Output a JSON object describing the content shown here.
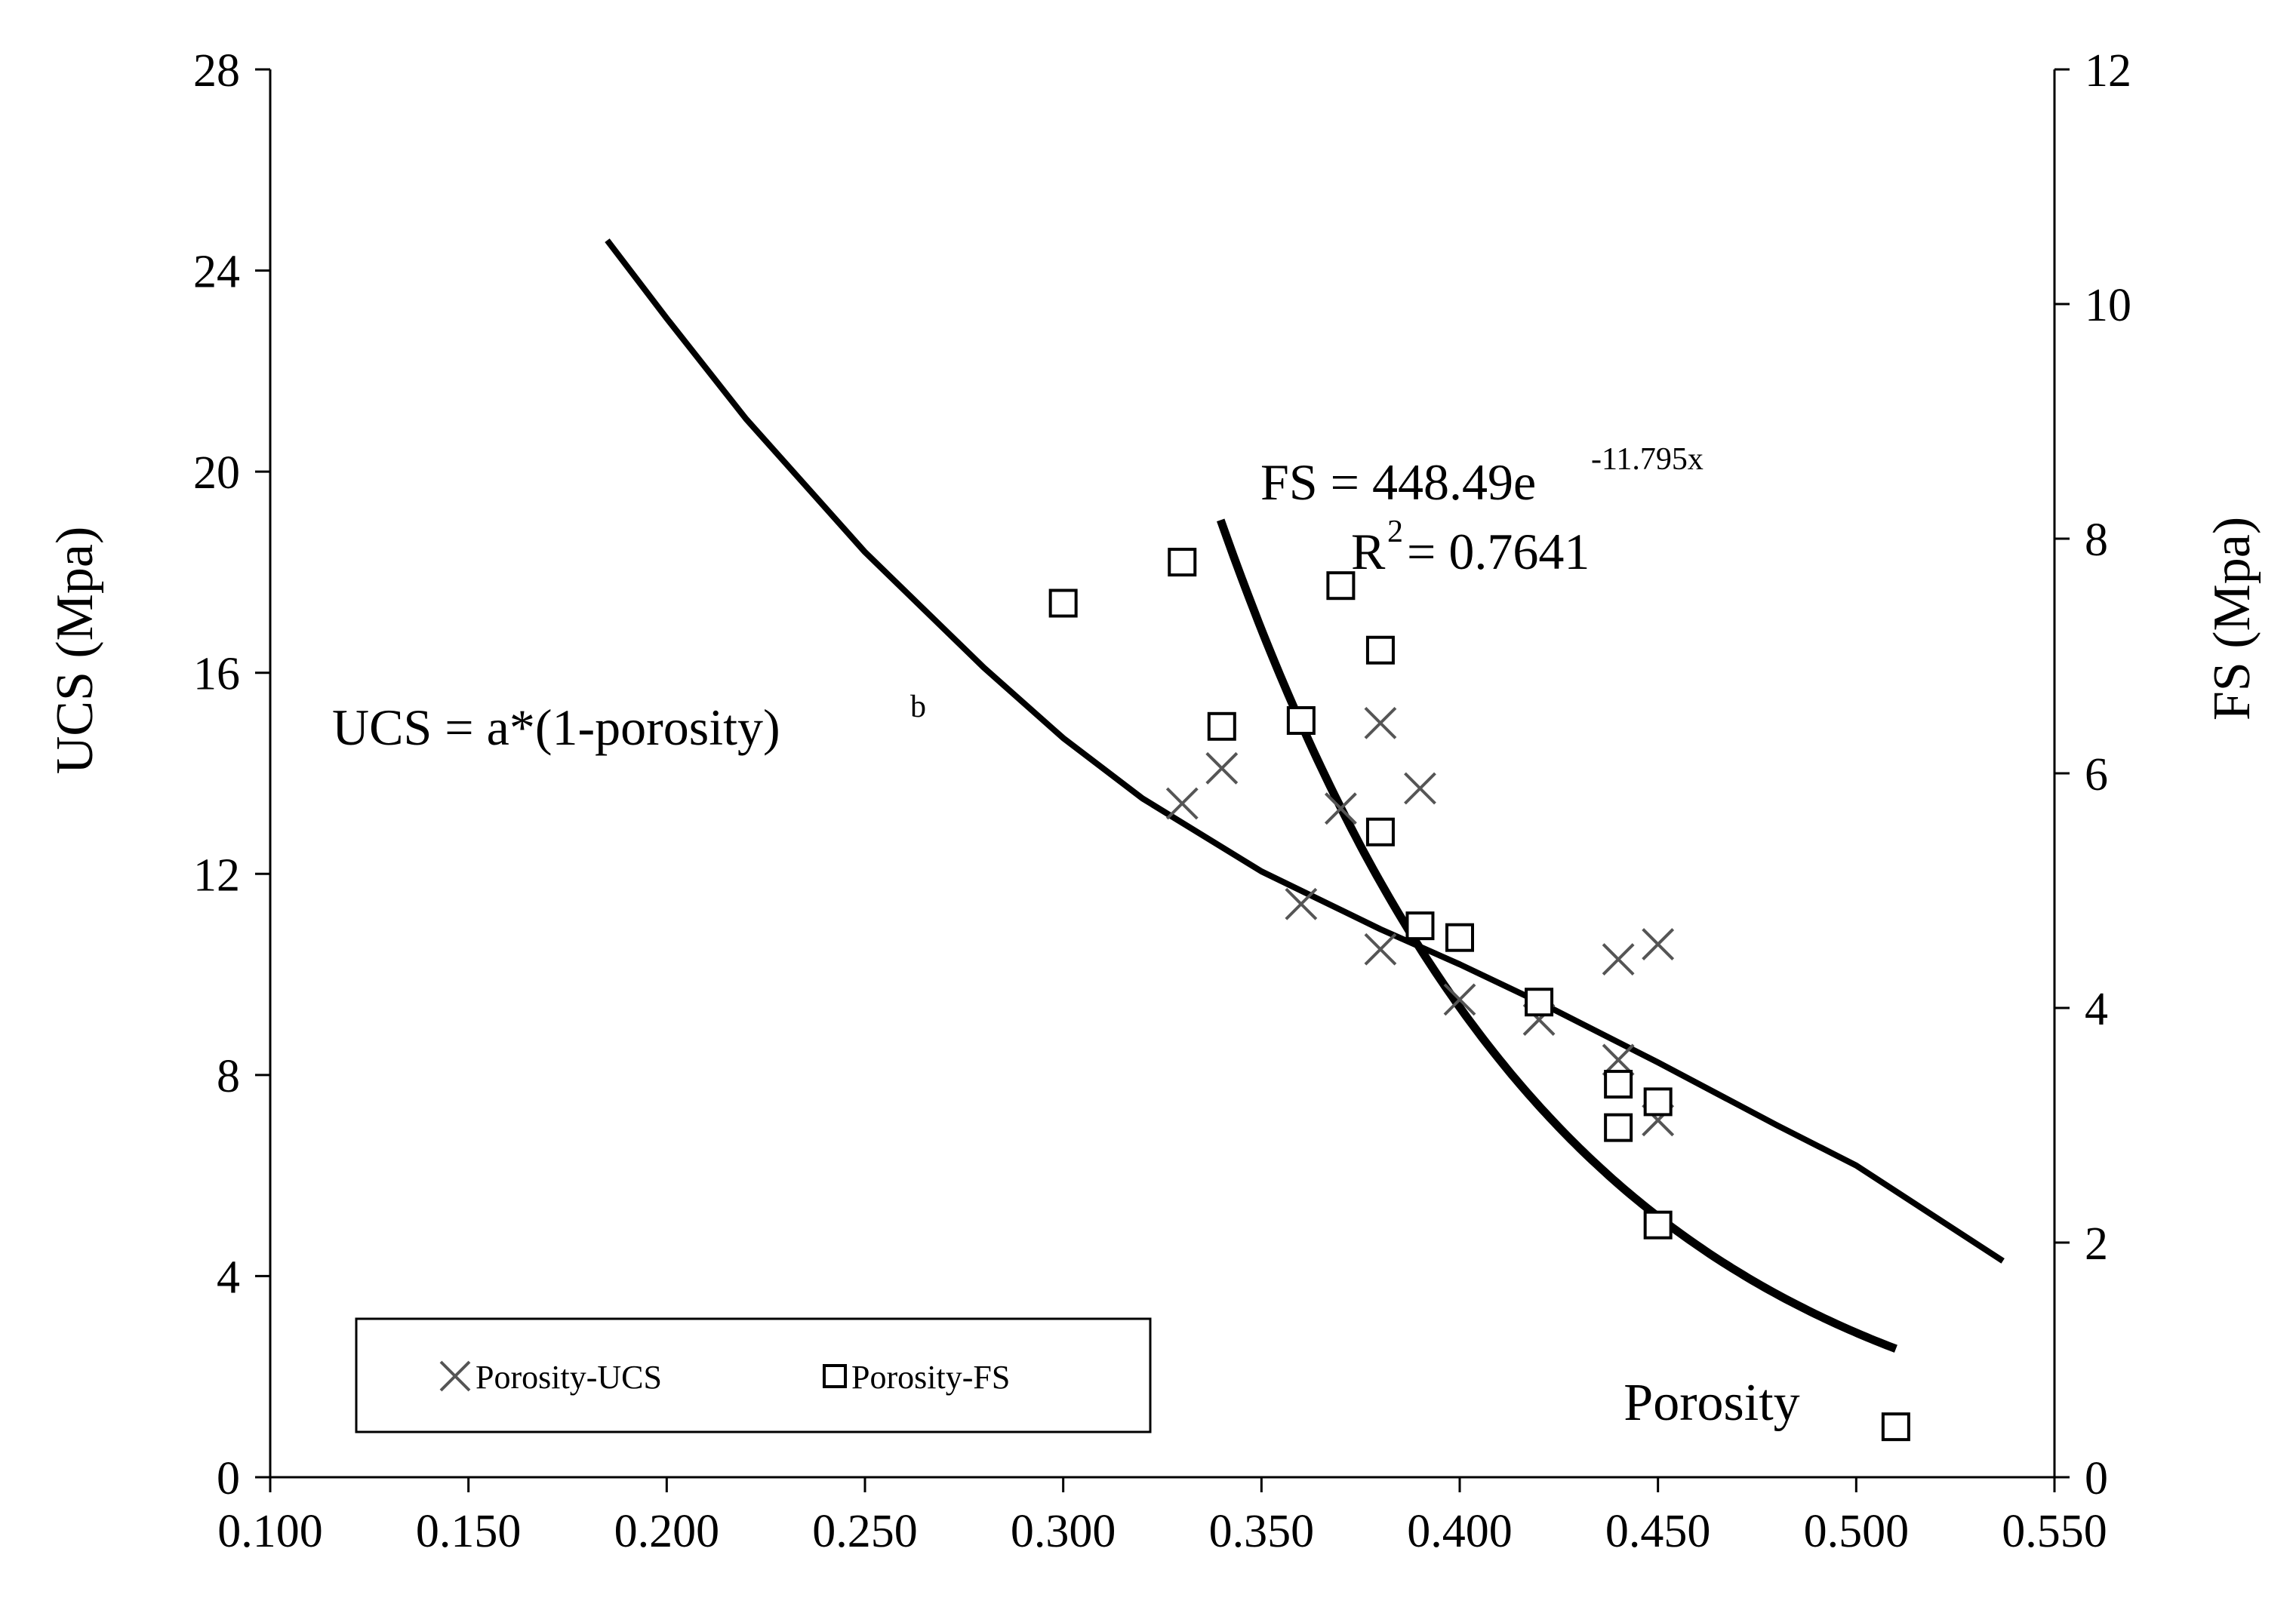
{
  "chart_data": {
    "type": "scatter",
    "xlabel": "Porosity",
    "ylabel_left": "UCS (Mpa)",
    "ylabel_right": "FS (Mpa)",
    "xlim": [
      0.1,
      0.55
    ],
    "ylim_left": [
      0,
      28
    ],
    "ylim_right": [
      0,
      12
    ],
    "x_ticks": [
      "0.100",
      "0.150",
      "0.200",
      "0.250",
      "0.300",
      "0.350",
      "0.400",
      "0.450",
      "0.500",
      "0.550"
    ],
    "y_left_ticks": [
      "0",
      "4",
      "8",
      "12",
      "16",
      "20",
      "24",
      "28"
    ],
    "y_right_ticks": [
      "0",
      "2",
      "4",
      "6",
      "8",
      "10",
      "12"
    ],
    "grid": false,
    "legend_position": "bottom-left",
    "series": [
      {
        "name": "Porosity-UCS",
        "axis": "left",
        "marker": "x",
        "x": [
          0.33,
          0.34,
          0.36,
          0.37,
          0.38,
          0.38,
          0.39,
          0.4,
          0.42,
          0.44,
          0.44,
          0.45,
          0.45
        ],
        "y": [
          13.4,
          14.1,
          11.4,
          13.3,
          15.0,
          10.5,
          13.7,
          9.5,
          9.1,
          10.3,
          8.3,
          10.6,
          7.1
        ]
      },
      {
        "name": "Porosity-FS",
        "axis": "right",
        "marker": "square",
        "x": [
          0.3,
          0.33,
          0.34,
          0.36,
          0.37,
          0.38,
          0.38,
          0.39,
          0.4,
          0.42,
          0.44,
          0.44,
          0.45,
          0.45,
          0.51
        ],
        "y": [
          7.45,
          7.8,
          6.4,
          6.45,
          7.6,
          7.05,
          5.5,
          4.7,
          4.6,
          4.05,
          3.35,
          2.98,
          3.2,
          2.15,
          0.43
        ]
      }
    ],
    "fits": [
      {
        "axis": "left",
        "kind": "power",
        "equation": "UCS = a*(1-porosity)",
        "equation_sup": "b",
        "x": [
          0.185,
          0.2,
          0.22,
          0.25,
          0.28,
          0.3,
          0.32,
          0.35,
          0.38,
          0.4,
          0.42,
          0.45,
          0.48,
          0.5,
          0.537
        ],
        "y": [
          24.6,
          23.05,
          21.05,
          18.4,
          16.1,
          14.7,
          13.5,
          12.05,
          10.9,
          10.2,
          9.45,
          8.25,
          7.0,
          6.2,
          4.3
        ]
      },
      {
        "axis": "right",
        "kind": "exponential",
        "equation": "FS = 448.49e",
        "equation_sup": "-11.795x",
        "r2_label": "R",
        "r2_sup": "2",
        "r2_value": " = 0.7641",
        "a": 448.49,
        "b": -11.795,
        "x_range": [
          0.3397,
          0.51
        ]
      }
    ]
  }
}
